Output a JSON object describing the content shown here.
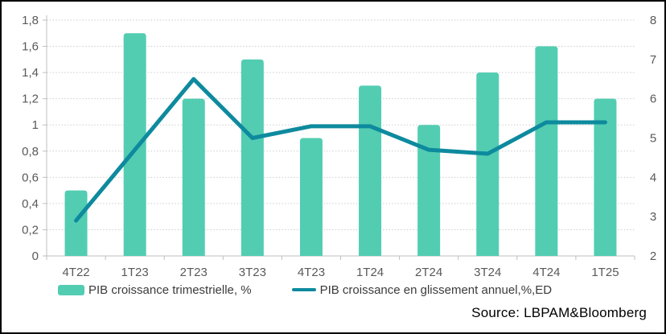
{
  "source_caption": "Source: LBPAM&Bloomberg",
  "colors": {
    "bar": "#52CDB2",
    "line": "#0E8A9E",
    "grid": "#CDCDCD",
    "axis": "#BFBFBF",
    "tick_label": "#595959",
    "legend_text": "#3b3b3b",
    "source_text": "#000000"
  },
  "chart_data": {
    "type": "bar",
    "title": "",
    "categories": [
      "4T22",
      "1T23",
      "2T23",
      "3T23",
      "4T23",
      "1T24",
      "2T24",
      "3T24",
      "4T24",
      "1T25"
    ],
    "series": [
      {
        "name": "PIB croissance trimestrielle, %",
        "type": "bar",
        "axis": "left",
        "values": [
          0.5,
          1.7,
          1.2,
          1.5,
          0.9,
          1.3,
          1.0,
          1.4,
          1.6,
          1.2
        ]
      },
      {
        "name": "PIB croissance en glissement annuel,%,ED",
        "type": "line",
        "axis": "right",
        "values": [
          2.9,
          4.7,
          6.5,
          5.0,
          5.3,
          5.3,
          4.7,
          4.6,
          5.4,
          5.4
        ]
      }
    ],
    "left_axis": {
      "min": 0,
      "max": 1.8,
      "step": 0.2,
      "tick_labels": [
        "0",
        "0,2",
        "0,4",
        "0,6",
        "0,8",
        "1",
        "1,2",
        "1,4",
        "1,6",
        "1,8"
      ]
    },
    "right_axis": {
      "min": 2,
      "max": 8,
      "step": 1,
      "tick_labels": [
        "2",
        "3",
        "4",
        "5",
        "6",
        "7",
        "8"
      ]
    },
    "grid": true,
    "legend_position": "bottom"
  }
}
